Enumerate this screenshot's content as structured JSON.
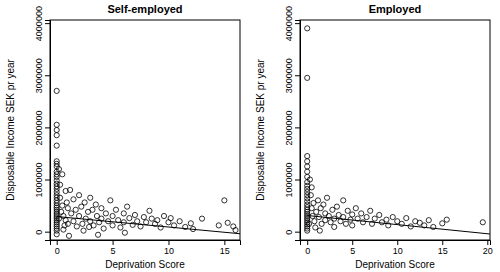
{
  "chart_data": [
    {
      "type": "scatter",
      "title": "Self-employed",
      "x_label": "Deprivation Score",
      "y_label": "Disposable Income SEK pr year",
      "xlim": [
        -0.6,
        16.4
      ],
      "ylim": [
        -160000,
        4060000
      ],
      "xticks": [
        0,
        5,
        10,
        15
      ],
      "yticks": [
        0,
        1000000,
        2000000,
        3000000,
        4000000
      ],
      "series": [
        {
          "type": "scatter",
          "marker": "circle",
          "color": "#000000",
          "x": [
            0,
            0,
            0,
            0,
            0,
            0,
            0,
            0,
            0,
            0,
            0,
            0,
            0,
            0,
            0,
            0,
            0,
            0,
            0,
            0,
            0,
            0,
            0,
            0,
            0,
            0,
            0,
            0,
            0,
            0,
            0,
            0,
            0,
            0,
            0.2,
            0.3,
            0.3,
            0.5,
            0.5,
            0.6,
            0.8,
            0.8,
            1,
            1,
            0.4,
            0.7,
            0.9,
            0.2,
            0.6,
            1.2,
            1.3,
            1.5,
            1.5,
            1.7,
            1.8,
            2,
            2,
            2.2,
            2.3,
            2.5,
            2.6,
            2.8,
            3,
            3,
            1.1,
            2.4,
            2.9,
            3.2,
            3.3,
            3.5,
            3.6,
            3.8,
            4,
            4,
            4.2,
            4.4,
            4.6,
            4.8,
            5,
            5,
            3.7,
            5.3,
            5.5,
            5.7,
            6,
            6,
            6.3,
            6.5,
            6.8,
            7,
            7.2,
            7.5,
            7.8,
            8,
            6.1,
            8.3,
            8.5,
            8.8,
            9,
            9.3,
            9.6,
            10,
            10.2,
            10.5,
            11,
            11.5,
            12,
            12.2,
            13,
            14.5,
            15,
            15.3,
            15.8,
            16
          ],
          "values": [
            2700000,
            2050000,
            1950000,
            1850000,
            1650000,
            1350000,
            1300000,
            1250000,
            1150000,
            1100000,
            1050000,
            980000,
            920000,
            870000,
            820000,
            760000,
            700000,
            650000,
            600000,
            550000,
            500000,
            460000,
            420000,
            380000,
            340000,
            300000,
            260000,
            220000,
            180000,
            140000,
            100000,
            60000,
            20000,
            -50000,
            1200000,
            900000,
            650000,
            1100000,
            500000,
            300000,
            780000,
            220000,
            450000,
            150000,
            380000,
            120000,
            560000,
            250000,
            40000,
            800000,
            350000,
            620000,
            200000,
            420000,
            100000,
            700000,
            300000,
            480000,
            150000,
            560000,
            250000,
            380000,
            650000,
            200000,
            -80000,
            20000,
            90000,
            420000,
            120000,
            520000,
            300000,
            180000,
            450000,
            250000,
            60000,
            350000,
            200000,
            600000,
            300000,
            120000,
            -60000,
            420000,
            220000,
            80000,
            350000,
            180000,
            480000,
            260000,
            130000,
            320000,
            200000,
            100000,
            280000,
            180000,
            -20000,
            400000,
            250000,
            150000,
            220000,
            80000,
            300000,
            180000,
            260000,
            120000,
            200000,
            90000,
            160000,
            50000,
            250000,
            120000,
            600000,
            170000,
            100000,
            30000
          ]
        },
        {
          "type": "line",
          "line_style": "solid",
          "color": "#000000",
          "x": [
            0,
            16.4
          ],
          "values": [
            290000,
            -40000
          ]
        }
      ]
    },
    {
      "type": "scatter",
      "title": "Employed",
      "x_label": "Deprivation Score",
      "y_label": "Disposable Income SEK pr year",
      "xlim": [
        -0.8,
        20.3
      ],
      "ylim": [
        -160000,
        4060000
      ],
      "xticks": [
        0,
        5,
        10,
        15,
        20
      ],
      "yticks": [
        0,
        1000000,
        2000000,
        3000000,
        4000000
      ],
      "series": [
        {
          "type": "scatter",
          "marker": "circle",
          "color": "#000000",
          "x": [
            0,
            0,
            0,
            0,
            0,
            0,
            0,
            0,
            0,
            0,
            0,
            0,
            0,
            0,
            0,
            0,
            0,
            0,
            0,
            0,
            0,
            0,
            0,
            0,
            0,
            0,
            0,
            0.3,
            0.4,
            0.5,
            0.6,
            0.7,
            0.8,
            1,
            0.2,
            0.9,
            0.5,
            1.2,
            1.3,
            1.5,
            1.6,
            1.8,
            2,
            2,
            2.2,
            2.4,
            2.6,
            2.8,
            3,
            3,
            1.4,
            3.3,
            3.5,
            3.7,
            4,
            4,
            4.3,
            4.5,
            4.8,
            5,
            5,
            5.4,
            5.6,
            6,
            6.2,
            6.6,
            7,
            7.2,
            7.5,
            8,
            8.3,
            8.8,
            9,
            9.5,
            10,
            10.5,
            11,
            11.5,
            12,
            12.5,
            13,
            13.5,
            14,
            15,
            15.5,
            19.5
          ],
          "values": [
            3900000,
            2950000,
            1450000,
            1350000,
            1250000,
            1150000,
            1050000,
            950000,
            880000,
            820000,
            760000,
            700000,
            640000,
            580000,
            520000,
            470000,
            420000,
            380000,
            340000,
            300000,
            260000,
            220000,
            180000,
            140000,
            100000,
            60000,
            20000,
            1000000,
            700000,
            450000,
            300000,
            550000,
            200000,
            380000,
            150000,
            80000,
            850000,
            600000,
            280000,
            450000,
            150000,
            520000,
            350000,
            220000,
            650000,
            300000,
            180000,
            420000,
            250000,
            90000,
            20000,
            480000,
            320000,
            200000,
            600000,
            280000,
            150000,
            400000,
            230000,
            330000,
            120000,
            450000,
            250000,
            350000,
            180000,
            280000,
            400000,
            150000,
            250000,
            320000,
            180000,
            230000,
            120000,
            280000,
            200000,
            150000,
            260000,
            100000,
            200000,
            170000,
            120000,
            220000,
            90000,
            160000,
            230000,
            180000
          ]
        },
        {
          "type": "line",
          "line_style": "solid",
          "color": "#000000",
          "x": [
            0,
            20.3
          ],
          "values": [
            310000,
            -45000
          ]
        }
      ]
    }
  ]
}
